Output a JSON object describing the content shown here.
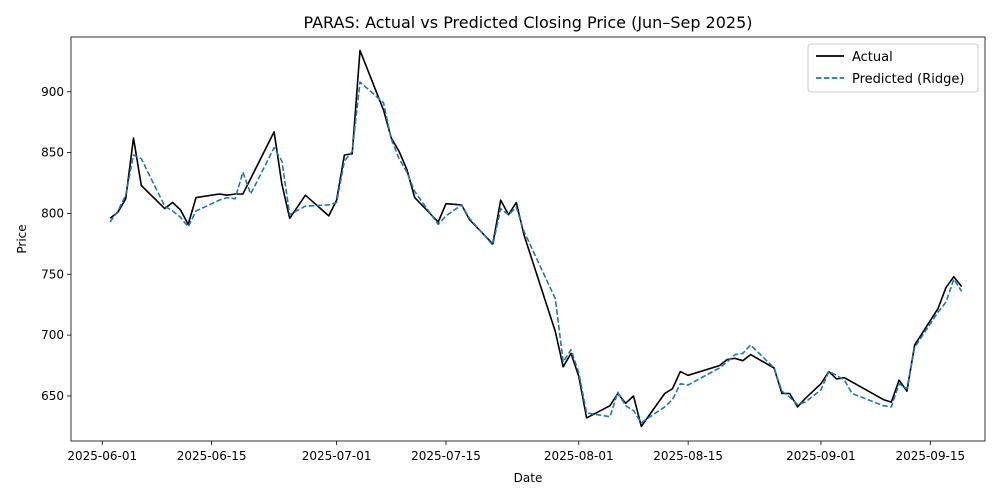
{
  "chart_data": {
    "type": "line",
    "title": "PARAS: Actual vs Predicted Closing Price (Jun–Sep 2025)",
    "xlabel": "Date",
    "ylabel": "Price",
    "xlim": [
      "2025-05-28",
      "2025-09-22"
    ],
    "ylim": [
      613,
      945
    ],
    "x_ticks": [
      "2025-06-01",
      "2025-06-15",
      "2025-07-01",
      "2025-07-15",
      "2025-08-01",
      "2025-08-15",
      "2025-09-01",
      "2025-09-15"
    ],
    "y_ticks": [
      650,
      700,
      750,
      800,
      850,
      900
    ],
    "grid": false,
    "legend_position": "top-right",
    "series": [
      {
        "name": "Actual",
        "color": "#000000",
        "style": "solid",
        "points": [
          {
            "x": "2025-06-02",
            "y": 796
          },
          {
            "x": "2025-06-03",
            "y": 801
          },
          {
            "x": "2025-06-04",
            "y": 812
          },
          {
            "x": "2025-06-05",
            "y": 862
          },
          {
            "x": "2025-06-06",
            "y": 823
          },
          {
            "x": "2025-06-09",
            "y": 804
          },
          {
            "x": "2025-06-10",
            "y": 809
          },
          {
            "x": "2025-06-11",
            "y": 803
          },
          {
            "x": "2025-06-12",
            "y": 791
          },
          {
            "x": "2025-06-13",
            "y": 813
          },
          {
            "x": "2025-06-16",
            "y": 816
          },
          {
            "x": "2025-06-17",
            "y": 815
          },
          {
            "x": "2025-06-18",
            "y": 816
          },
          {
            "x": "2025-06-19",
            "y": 816
          },
          {
            "x": "2025-06-23",
            "y": 867
          },
          {
            "x": "2025-06-24",
            "y": 824
          },
          {
            "x": "2025-06-25",
            "y": 796
          },
          {
            "x": "2025-06-27",
            "y": 815
          },
          {
            "x": "2025-06-30",
            "y": 798
          },
          {
            "x": "2025-07-01",
            "y": 811
          },
          {
            "x": "2025-07-02",
            "y": 848
          },
          {
            "x": "2025-07-03",
            "y": 849
          },
          {
            "x": "2025-07-04",
            "y": 934
          },
          {
            "x": "2025-07-07",
            "y": 885
          },
          {
            "x": "2025-07-08",
            "y": 862
          },
          {
            "x": "2025-07-09",
            "y": 851
          },
          {
            "x": "2025-07-10",
            "y": 836
          },
          {
            "x": "2025-07-11",
            "y": 813
          },
          {
            "x": "2025-07-14",
            "y": 793
          },
          {
            "x": "2025-07-15",
            "y": 808
          },
          {
            "x": "2025-07-17",
            "y": 807
          },
          {
            "x": "2025-07-18",
            "y": 795
          },
          {
            "x": "2025-07-21",
            "y": 775
          },
          {
            "x": "2025-07-22",
            "y": 811
          },
          {
            "x": "2025-07-23",
            "y": 799
          },
          {
            "x": "2025-07-24",
            "y": 809
          },
          {
            "x": "2025-07-25",
            "y": 782
          },
          {
            "x": "2025-07-29",
            "y": 703
          },
          {
            "x": "2025-07-30",
            "y": 674
          },
          {
            "x": "2025-07-31",
            "y": 685
          },
          {
            "x": "2025-08-01",
            "y": 666
          },
          {
            "x": "2025-08-02",
            "y": 632
          },
          {
            "x": "2025-08-05",
            "y": 642
          },
          {
            "x": "2025-08-06",
            "y": 652
          },
          {
            "x": "2025-08-07",
            "y": 644
          },
          {
            "x": "2025-08-08",
            "y": 650
          },
          {
            "x": "2025-08-09",
            "y": 625
          },
          {
            "x": "2025-08-12",
            "y": 652
          },
          {
            "x": "2025-08-13",
            "y": 656
          },
          {
            "x": "2025-08-14",
            "y": 670
          },
          {
            "x": "2025-08-15",
            "y": 667
          },
          {
            "x": "2025-08-19",
            "y": 675
          },
          {
            "x": "2025-08-20",
            "y": 680
          },
          {
            "x": "2025-08-21",
            "y": 681
          },
          {
            "x": "2025-08-22",
            "y": 679
          },
          {
            "x": "2025-08-23",
            "y": 684
          },
          {
            "x": "2025-08-26",
            "y": 673
          },
          {
            "x": "2025-08-27",
            "y": 652
          },
          {
            "x": "2025-08-28",
            "y": 652
          },
          {
            "x": "2025-08-29",
            "y": 641
          },
          {
            "x": "2025-08-30",
            "y": 648
          },
          {
            "x": "2025-09-01",
            "y": 660
          },
          {
            "x": "2025-09-02",
            "y": 670
          },
          {
            "x": "2025-09-03",
            "y": 664
          },
          {
            "x": "2025-09-04",
            "y": 665
          },
          {
            "x": "2025-09-09",
            "y": 647
          },
          {
            "x": "2025-09-10",
            "y": 645
          },
          {
            "x": "2025-09-11",
            "y": 663
          },
          {
            "x": "2025-09-12",
            "y": 654
          },
          {
            "x": "2025-09-13",
            "y": 692
          },
          {
            "x": "2025-09-16",
            "y": 722
          },
          {
            "x": "2025-09-17",
            "y": 739
          },
          {
            "x": "2025-09-18",
            "y": 748
          },
          {
            "x": "2025-09-19",
            "y": 740
          }
        ]
      },
      {
        "name": "Predicted (Ridge)",
        "color": "#1f77b4",
        "style": "dashed",
        "points": [
          {
            "x": "2025-06-02",
            "y": 793
          },
          {
            "x": "2025-06-03",
            "y": 802
          },
          {
            "x": "2025-06-04",
            "y": 815
          },
          {
            "x": "2025-06-05",
            "y": 848
          },
          {
            "x": "2025-06-06",
            "y": 845
          },
          {
            "x": "2025-06-09",
            "y": 806
          },
          {
            "x": "2025-06-10",
            "y": 802
          },
          {
            "x": "2025-06-11",
            "y": 797
          },
          {
            "x": "2025-06-12",
            "y": 789
          },
          {
            "x": "2025-06-13",
            "y": 802
          },
          {
            "x": "2025-06-16",
            "y": 811
          },
          {
            "x": "2025-06-17",
            "y": 813
          },
          {
            "x": "2025-06-18",
            "y": 812
          },
          {
            "x": "2025-06-19",
            "y": 834
          },
          {
            "x": "2025-06-20",
            "y": 816
          },
          {
            "x": "2025-06-23",
            "y": 854
          },
          {
            "x": "2025-06-24",
            "y": 843
          },
          {
            "x": "2025-06-25",
            "y": 799
          },
          {
            "x": "2025-06-27",
            "y": 806
          },
          {
            "x": "2025-06-30",
            "y": 807
          },
          {
            "x": "2025-07-01",
            "y": 809
          },
          {
            "x": "2025-07-02",
            "y": 843
          },
          {
            "x": "2025-07-03",
            "y": 851
          },
          {
            "x": "2025-07-04",
            "y": 908
          },
          {
            "x": "2025-07-07",
            "y": 891
          },
          {
            "x": "2025-07-08",
            "y": 861
          },
          {
            "x": "2025-07-09",
            "y": 845
          },
          {
            "x": "2025-07-10",
            "y": 834
          },
          {
            "x": "2025-07-11",
            "y": 818
          },
          {
            "x": "2025-07-14",
            "y": 791
          },
          {
            "x": "2025-07-15",
            "y": 798
          },
          {
            "x": "2025-07-17",
            "y": 807
          },
          {
            "x": "2025-07-18",
            "y": 796
          },
          {
            "x": "2025-07-21",
            "y": 774
          },
          {
            "x": "2025-07-22",
            "y": 804
          },
          {
            "x": "2025-07-23",
            "y": 799
          },
          {
            "x": "2025-07-24",
            "y": 805
          },
          {
            "x": "2025-07-25",
            "y": 785
          },
          {
            "x": "2025-07-29",
            "y": 730
          },
          {
            "x": "2025-07-30",
            "y": 678
          },
          {
            "x": "2025-07-31",
            "y": 688
          },
          {
            "x": "2025-08-01",
            "y": 669
          },
          {
            "x": "2025-08-02",
            "y": 636
          },
          {
            "x": "2025-08-05",
            "y": 633
          },
          {
            "x": "2025-08-06",
            "y": 653
          },
          {
            "x": "2025-08-07",
            "y": 642
          },
          {
            "x": "2025-08-08",
            "y": 638
          },
          {
            "x": "2025-08-09",
            "y": 628
          },
          {
            "x": "2025-08-12",
            "y": 641
          },
          {
            "x": "2025-08-13",
            "y": 647
          },
          {
            "x": "2025-08-14",
            "y": 660
          },
          {
            "x": "2025-08-15",
            "y": 659
          },
          {
            "x": "2025-08-19",
            "y": 673
          },
          {
            "x": "2025-08-20",
            "y": 678
          },
          {
            "x": "2025-08-21",
            "y": 684
          },
          {
            "x": "2025-08-22",
            "y": 685
          },
          {
            "x": "2025-08-23",
            "y": 692
          },
          {
            "x": "2025-08-26",
            "y": 673
          },
          {
            "x": "2025-08-27",
            "y": 654
          },
          {
            "x": "2025-08-28",
            "y": 649
          },
          {
            "x": "2025-08-29",
            "y": 643
          },
          {
            "x": "2025-08-30",
            "y": 645
          },
          {
            "x": "2025-09-01",
            "y": 655
          },
          {
            "x": "2025-09-02",
            "y": 670
          },
          {
            "x": "2025-09-03",
            "y": 667
          },
          {
            "x": "2025-09-04",
            "y": 663
          },
          {
            "x": "2025-09-05",
            "y": 652
          },
          {
            "x": "2025-09-09",
            "y": 642
          },
          {
            "x": "2025-09-10",
            "y": 641
          },
          {
            "x": "2025-09-11",
            "y": 660
          },
          {
            "x": "2025-09-12",
            "y": 656
          },
          {
            "x": "2025-09-13",
            "y": 690
          },
          {
            "x": "2025-09-16",
            "y": 719
          },
          {
            "x": "2025-09-17",
            "y": 727
          },
          {
            "x": "2025-09-18",
            "y": 746
          },
          {
            "x": "2025-09-19",
            "y": 736
          }
        ]
      }
    ]
  }
}
